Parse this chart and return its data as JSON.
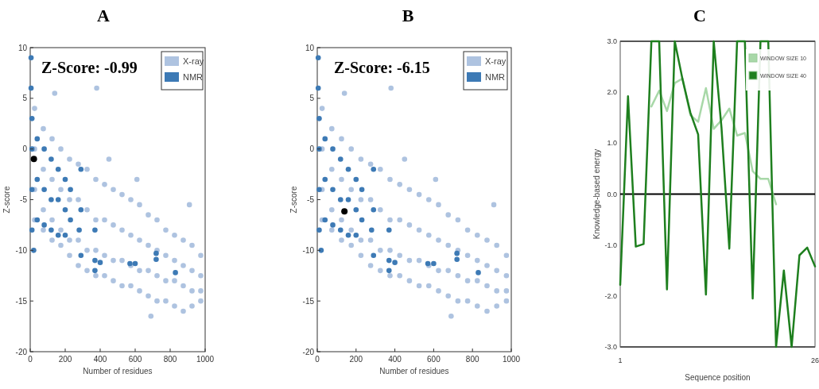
{
  "chart_data": [
    {
      "type": "scatter",
      "title": "A",
      "xlabel": "Number of residues",
      "ylabel": "Z-score",
      "xlim": [
        0,
        1000
      ],
      "xticks": [
        0,
        200,
        400,
        600,
        800,
        1000
      ],
      "ylim": [
        -20,
        10
      ],
      "yticks": [
        -20,
        -15,
        -10,
        -5,
        0,
        5,
        10
      ],
      "legend": "top right",
      "marker": "circle",
      "annotations": [
        "Z-Score: -0.99"
      ],
      "series": [
        {
          "name": "X-ray",
          "color": "#aec3e0",
          "x": [
            25,
            25,
            25,
            25,
            75,
            75,
            75,
            75,
            125,
            125,
            125,
            125,
            175,
            175,
            175,
            175,
            225,
            225,
            225,
            225,
            275,
            275,
            275,
            275,
            325,
            325,
            325,
            325,
            375,
            375,
            375,
            375,
            425,
            425,
            425,
            425,
            475,
            475,
            475,
            475,
            525,
            525,
            525,
            525,
            575,
            575,
            575,
            575,
            625,
            625,
            625,
            625,
            675,
            675,
            675,
            675,
            725,
            725,
            725,
            725,
            775,
            775,
            775,
            775,
            825,
            825,
            825,
            825,
            875,
            875,
            875,
            875,
            925,
            925,
            925,
            925,
            975,
            975,
            975,
            975,
            140,
            380,
            450,
            610,
            910,
            690
          ],
          "values": [
            4,
            0,
            -4,
            -7,
            2,
            -2,
            -6,
            -8,
            1,
            -3,
            -7,
            -9,
            0,
            -4,
            -8,
            -9.5,
            -1,
            -5,
            -9,
            -10.5,
            -1.5,
            -5,
            -9,
            -11.5,
            -2,
            -6,
            -10,
            -12,
            -3,
            -7,
            -10,
            -12.5,
            -3.5,
            -7,
            -10.5,
            -12.5,
            -4,
            -7.5,
            -11,
            -13,
            -4.5,
            -8,
            -11,
            -13.5,
            -5,
            -8.5,
            -11.5,
            -13.5,
            -5.5,
            -9,
            -12,
            -14,
            -6.5,
            -9.5,
            -12,
            -14.5,
            -7,
            -10,
            -12.5,
            -15,
            -8,
            -10.5,
            -13,
            -15,
            -8.5,
            -11,
            -13,
            -15.5,
            -9,
            -11.5,
            -13.5,
            -16,
            -9.5,
            -12,
            -14,
            -15.5,
            -10.5,
            -12.5,
            -14,
            -15,
            5.5,
            6,
            -1,
            -3,
            -5.5,
            -16.5
          ]
        },
        {
          "name": "NMR",
          "color": "#3d7ab5",
          "x": [
            5,
            5,
            10,
            10,
            10,
            10,
            40,
            40,
            40,
            80,
            80,
            80,
            120,
            120,
            120,
            160,
            160,
            160,
            200,
            200,
            200,
            230,
            230,
            290,
            290,
            290,
            370,
            370,
            370,
            400,
            570,
            600,
            720,
            720,
            830,
            20,
            280
          ],
          "values": [
            9,
            6,
            3,
            0,
            -4,
            -8,
            1,
            -3,
            -7,
            0,
            -4,
            -7.5,
            -1,
            -5,
            -8,
            -2,
            -5,
            -8.5,
            -3,
            -6,
            -8.5,
            -4,
            -7,
            -2,
            -6,
            -10.5,
            -8,
            -11,
            -12,
            -11.2,
            -11.3,
            -11.3,
            -10.3,
            -10.9,
            -12.2,
            -10,
            -8
          ]
        },
        {
          "color": "#000000",
          "x": [
            21
          ],
          "values": [
            -0.99
          ]
        }
      ]
    },
    {
      "type": "scatter",
      "title": "B",
      "xlabel": "Number of residues",
      "ylabel": "Z-score",
      "xlim": [
        0,
        1000
      ],
      "xticks": [
        0,
        200,
        400,
        600,
        800,
        1000
      ],
      "ylim": [
        -20,
        10
      ],
      "yticks": [
        -20,
        -15,
        -10,
        -5,
        0,
        5,
        10
      ],
      "legend": "top right",
      "marker": "circle",
      "annotations": [
        "Z-Score: -6.15"
      ],
      "series": [
        {
          "name": "X-ray",
          "color": "#aec3e0",
          "x": [
            25,
            25,
            25,
            25,
            75,
            75,
            75,
            75,
            125,
            125,
            125,
            125,
            175,
            175,
            175,
            175,
            225,
            225,
            225,
            225,
            275,
            275,
            275,
            275,
            325,
            325,
            325,
            325,
            375,
            375,
            375,
            375,
            425,
            425,
            425,
            425,
            475,
            475,
            475,
            475,
            525,
            525,
            525,
            525,
            575,
            575,
            575,
            575,
            625,
            625,
            625,
            625,
            675,
            675,
            675,
            675,
            725,
            725,
            725,
            725,
            775,
            775,
            775,
            775,
            825,
            825,
            825,
            825,
            875,
            875,
            875,
            875,
            925,
            925,
            925,
            925,
            975,
            975,
            975,
            975,
            140,
            380,
            450,
            610,
            910,
            690
          ],
          "values": [
            4,
            0,
            -4,
            -7,
            2,
            -2,
            -6,
            -8,
            1,
            -3,
            -7,
            -9,
            0,
            -4,
            -8,
            -9.5,
            -1,
            -5,
            -9,
            -10.5,
            -1.5,
            -5,
            -9,
            -11.5,
            -2,
            -6,
            -10,
            -12,
            -3,
            -7,
            -10,
            -12.5,
            -3.5,
            -7,
            -10.5,
            -12.5,
            -4,
            -7.5,
            -11,
            -13,
            -4.5,
            -8,
            -11,
            -13.5,
            -5,
            -8.5,
            -11.5,
            -13.5,
            -5.5,
            -9,
            -12,
            -14,
            -6.5,
            -9.5,
            -12,
            -14.5,
            -7,
            -10,
            -12.5,
            -15,
            -8,
            -10.5,
            -13,
            -15,
            -8.5,
            -11,
            -13,
            -15.5,
            -9,
            -11.5,
            -13.5,
            -16,
            -9.5,
            -12,
            -14,
            -15.5,
            -10.5,
            -12.5,
            -14,
            -15,
            5.5,
            6,
            -1,
            -3,
            -5.5,
            -16.5
          ]
        },
        {
          "name": "NMR",
          "color": "#3d7ab5",
          "x": [
            5,
            5,
            10,
            10,
            10,
            10,
            40,
            40,
            40,
            80,
            80,
            80,
            120,
            120,
            120,
            160,
            160,
            160,
            200,
            200,
            200,
            230,
            230,
            290,
            290,
            290,
            370,
            370,
            370,
            400,
            570,
            600,
            720,
            720,
            830,
            20,
            280
          ],
          "values": [
            9,
            6,
            3,
            0,
            -4,
            -8,
            1,
            -3,
            -7,
            0,
            -4,
            -7.5,
            -1,
            -5,
            -8,
            -2,
            -5,
            -8.5,
            -3,
            -6,
            -8.5,
            -4,
            -7,
            -2,
            -6,
            -10.5,
            -8,
            -11,
            -12,
            -11.2,
            -11.3,
            -11.3,
            -10.3,
            -10.9,
            -12.2,
            -10,
            -8
          ]
        },
        {
          "color": "#000000",
          "x": [
            140
          ],
          "values": [
            -6.15
          ]
        }
      ]
    },
    {
      "type": "line",
      "title": "C",
      "xlabel": "Sequence position",
      "ylabel": "Knowledge-based energy",
      "xlim": [
        1,
        26
      ],
      "xticks": [
        1,
        26
      ],
      "ylim": [
        -3,
        3
      ],
      "yticks": [
        {
          "value": -3,
          "label": "-3.0"
        },
        {
          "value": -2,
          "label": "-2.0"
        },
        {
          "value": -1,
          "label": "-1.0"
        },
        {
          "value": 0,
          "label": "0.0"
        },
        {
          "value": 1,
          "label": "1.0"
        },
        {
          "value": 2,
          "label": "2.0"
        },
        {
          "value": 3,
          "label": "3.0"
        }
      ],
      "legend": "top right",
      "marker": "none",
      "ref_lines": [
        {
          "axis": "y",
          "value": 0,
          "color": "#000000"
        }
      ],
      "x": [
        1,
        2,
        3,
        4,
        5,
        6,
        7,
        8,
        9,
        10,
        11,
        12,
        13,
        14,
        15,
        16,
        17,
        18,
        19,
        20,
        21,
        22,
        23,
        24,
        25,
        26
      ],
      "series": [
        {
          "name": "WINDOW SIZE 10",
          "color": "#a8d8a8",
          "values": [
            null,
            null,
            null,
            null,
            1.72,
            2.03,
            1.63,
            2.18,
            2.27,
            1.55,
            1.42,
            2.08,
            1.28,
            1.45,
            1.68,
            1.15,
            1.2,
            0.45,
            0.3,
            0.3,
            -0.2,
            null,
            null,
            null,
            null,
            null
          ]
        },
        {
          "name": "WINDOW SIZE 40",
          "color": "#1e7f1e",
          "values": [
            -1.78,
            1.92,
            -1.03,
            -0.98,
            3,
            3,
            -1.87,
            3,
            2.25,
            1.6,
            1.17,
            -1.97,
            3,
            1.3,
            -1.07,
            3,
            3,
            -2.05,
            3,
            3,
            -3,
            -1.5,
            -3,
            -1.2,
            -1.05,
            -1.42
          ]
        }
      ]
    }
  ]
}
